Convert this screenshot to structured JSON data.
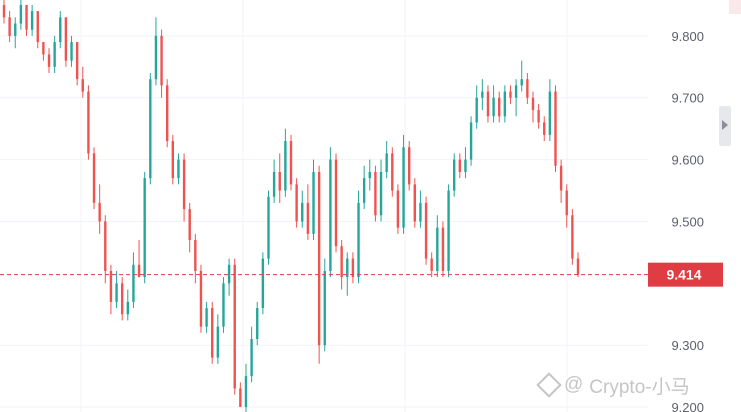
{
  "chart_data": {
    "type": "candlestick",
    "y_ticks": [
      "9.800",
      "9.700",
      "9.600",
      "9.500",
      "9.300",
      "9.200"
    ],
    "ylim": [
      9.192,
      9.858
    ],
    "current_price": 9.414,
    "current_price_label": "9.414",
    "up_color": "#26a69a",
    "down_color": "#ef5350",
    "price_line_color": "#e03c44",
    "grid": true,
    "candles": [
      [
        9.85,
        9.86,
        9.82,
        9.83
      ],
      [
        9.83,
        9.84,
        9.79,
        9.8
      ],
      [
        9.8,
        9.83,
        9.78,
        9.82
      ],
      [
        9.82,
        9.86,
        9.81,
        9.85
      ],
      [
        9.85,
        9.85,
        9.8,
        9.81
      ],
      [
        9.81,
        9.85,
        9.8,
        9.84
      ],
      [
        9.84,
        9.84,
        9.78,
        9.79
      ],
      [
        9.79,
        9.79,
        9.76,
        9.77
      ],
      [
        9.77,
        9.78,
        9.74,
        9.75
      ],
      [
        9.75,
        9.8,
        9.74,
        9.79
      ],
      [
        9.79,
        9.84,
        9.78,
        9.83
      ],
      [
        9.83,
        9.83,
        9.75,
        9.76
      ],
      [
        9.76,
        9.8,
        9.75,
        9.79
      ],
      [
        9.79,
        9.79,
        9.72,
        9.73
      ],
      [
        9.73,
        9.75,
        9.7,
        9.71
      ],
      [
        9.71,
        9.72,
        9.6,
        9.61
      ],
      [
        9.61,
        9.62,
        9.52,
        9.53
      ],
      [
        9.53,
        9.56,
        9.48,
        9.5
      ],
      [
        9.5,
        9.51,
        9.4,
        9.42
      ],
      [
        9.42,
        9.43,
        9.35,
        9.37
      ],
      [
        9.37,
        9.42,
        9.36,
        9.4
      ],
      [
        9.4,
        9.41,
        9.34,
        9.35
      ],
      [
        9.35,
        9.39,
        9.34,
        9.37
      ],
      [
        9.37,
        9.45,
        9.36,
        9.43
      ],
      [
        9.43,
        9.47,
        9.41,
        9.41
      ],
      [
        9.41,
        9.58,
        9.4,
        9.57
      ],
      [
        9.57,
        9.74,
        9.56,
        9.73
      ],
      [
        9.73,
        9.83,
        9.72,
        9.8
      ],
      [
        9.8,
        9.81,
        9.7,
        9.72
      ],
      [
        9.72,
        9.73,
        9.62,
        9.63
      ],
      [
        9.63,
        9.64,
        9.56,
        9.57
      ],
      [
        9.57,
        9.61,
        9.56,
        9.6
      ],
      [
        9.6,
        9.61,
        9.5,
        9.52
      ],
      [
        9.52,
        9.53,
        9.45,
        9.47
      ],
      [
        9.47,
        9.48,
        9.4,
        9.42
      ],
      [
        9.42,
        9.43,
        9.32,
        9.33
      ],
      [
        9.33,
        9.37,
        9.32,
        9.36
      ],
      [
        9.36,
        9.37,
        9.27,
        9.28
      ],
      [
        9.28,
        9.35,
        9.27,
        9.33
      ],
      [
        9.33,
        9.41,
        9.32,
        9.4
      ],
      [
        9.4,
        9.44,
        9.38,
        9.43
      ],
      [
        9.43,
        9.44,
        9.22,
        9.23
      ],
      [
        9.23,
        9.24,
        9.2,
        9.2
      ],
      [
        9.2,
        9.27,
        9.19,
        9.25
      ],
      [
        9.25,
        9.33,
        9.24,
        9.31
      ],
      [
        9.31,
        9.37,
        9.3,
        9.36
      ],
      [
        9.36,
        9.45,
        9.35,
        9.44
      ],
      [
        9.44,
        9.55,
        9.43,
        9.54
      ],
      [
        9.54,
        9.6,
        9.53,
        9.58
      ],
      [
        9.58,
        9.61,
        9.53,
        9.55
      ],
      [
        9.55,
        9.65,
        9.54,
        9.63
      ],
      [
        9.63,
        9.64,
        9.55,
        9.56
      ],
      [
        9.56,
        9.57,
        9.49,
        9.5
      ],
      [
        9.5,
        9.55,
        9.49,
        9.53
      ],
      [
        9.53,
        9.56,
        9.47,
        9.48
      ],
      [
        9.48,
        9.6,
        9.47,
        9.58
      ],
      [
        9.58,
        9.59,
        9.27,
        9.3
      ],
      [
        9.3,
        9.44,
        9.29,
        9.42
      ],
      [
        9.42,
        9.62,
        9.41,
        9.6
      ],
      [
        9.6,
        9.61,
        9.45,
        9.46
      ],
      [
        9.46,
        9.47,
        9.39,
        9.41
      ],
      [
        9.41,
        9.45,
        9.38,
        9.44
      ],
      [
        9.44,
        9.45,
        9.4,
        9.41
      ],
      [
        9.41,
        9.55,
        9.4,
        9.53
      ],
      [
        9.53,
        9.59,
        9.52,
        9.57
      ],
      [
        9.57,
        9.6,
        9.55,
        9.58
      ],
      [
        9.58,
        9.59,
        9.5,
        9.51
      ],
      [
        9.51,
        9.6,
        9.5,
        9.58
      ],
      [
        9.58,
        9.63,
        9.57,
        9.61
      ],
      [
        9.61,
        9.62,
        9.54,
        9.55
      ],
      [
        9.55,
        9.56,
        9.48,
        9.49
      ],
      [
        9.49,
        9.64,
        9.48,
        9.62
      ],
      [
        9.62,
        9.63,
        9.55,
        9.56
      ],
      [
        9.56,
        9.57,
        9.49,
        9.5
      ],
      [
        9.5,
        9.55,
        9.49,
        9.53
      ],
      [
        9.53,
        9.54,
        9.43,
        9.44
      ],
      [
        9.44,
        9.45,
        9.41,
        9.42
      ],
      [
        9.42,
        9.51,
        9.41,
        9.49
      ],
      [
        9.49,
        9.5,
        9.41,
        9.42
      ],
      [
        9.42,
        9.56,
        9.41,
        9.55
      ],
      [
        9.55,
        9.61,
        9.54,
        9.6
      ],
      [
        9.6,
        9.61,
        9.57,
        9.58
      ],
      [
        9.58,
        9.62,
        9.57,
        9.6
      ],
      [
        9.6,
        9.67,
        9.59,
        9.66
      ],
      [
        9.66,
        9.72,
        9.65,
        9.7
      ],
      [
        9.7,
        9.73,
        9.68,
        9.71
      ],
      [
        9.71,
        9.72,
        9.66,
        9.67
      ],
      [
        9.67,
        9.72,
        9.66,
        9.7
      ],
      [
        9.7,
        9.71,
        9.66,
        9.67
      ],
      [
        9.67,
        9.72,
        9.66,
        9.71
      ],
      [
        9.71,
        9.72,
        9.69,
        9.7
      ],
      [
        9.7,
        9.73,
        9.67,
        9.72
      ],
      [
        9.72,
        9.76,
        9.71,
        9.73
      ],
      [
        9.73,
        9.74,
        9.69,
        9.7
      ],
      [
        9.7,
        9.71,
        9.66,
        9.68
      ],
      [
        9.68,
        9.69,
        9.65,
        9.66
      ],
      [
        9.66,
        9.67,
        9.63,
        9.64
      ],
      [
        9.64,
        9.73,
        9.63,
        9.71
      ],
      [
        9.71,
        9.72,
        9.58,
        9.59
      ],
      [
        9.59,
        9.6,
        9.53,
        9.55
      ],
      [
        9.55,
        9.56,
        9.49,
        9.51
      ],
      [
        9.51,
        9.52,
        9.43,
        9.44
      ],
      [
        9.44,
        9.45,
        9.41,
        9.414
      ]
    ]
  },
  "watermark": {
    "logo_icon": "binance-logo-icon",
    "at_icon": "at-sign-icon",
    "text": "Crypto-小马"
  },
  "scroll_handle": {
    "icon": "chevron-right-icon"
  }
}
